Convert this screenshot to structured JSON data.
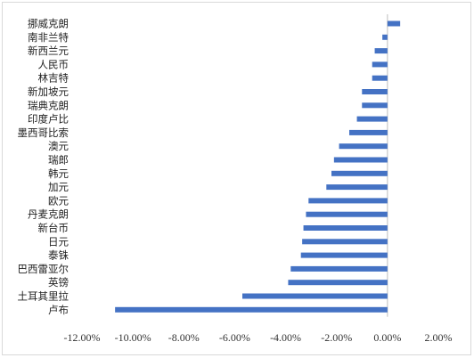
{
  "chart_data": {
    "type": "bar",
    "orientation": "horizontal",
    "title": "",
    "xlabel": "",
    "ylabel": "",
    "categories": [
      "挪威克朗",
      "南非兰特",
      "新西兰元",
      "人民币",
      "林吉特",
      "新加坡元",
      "瑞典克朗",
      "印度卢比",
      "墨西哥比索",
      "澳元",
      "瑞郎",
      "韩元",
      "加元",
      "欧元",
      "丹麦克朗",
      "新台币",
      "日元",
      "泰铢",
      "巴西雷亚尔",
      "英镑",
      "土耳其里拉",
      "卢布"
    ],
    "values": [
      0.5,
      -0.2,
      -0.5,
      -0.6,
      -0.6,
      -1.0,
      -1.0,
      -1.2,
      -1.5,
      -1.9,
      -2.1,
      -2.2,
      -2.4,
      -3.1,
      -3.2,
      -3.3,
      -3.35,
      -3.4,
      -3.8,
      -3.9,
      -5.7,
      -10.7
    ],
    "xlim": [
      -12,
      2
    ],
    "x_ticks": [
      "-12.00%",
      "-10.00%",
      "-8.00%",
      "-6.00%",
      "-4.00%",
      "-2.00%",
      "0.00%",
      "2.00%"
    ],
    "x_tick_values": [
      -12,
      -10,
      -8,
      -6,
      -4,
      -2,
      0,
      2
    ],
    "grid": false,
    "legend": "none",
    "bar_color": "#4472c4",
    "axis_color": "#bfbfbf"
  }
}
